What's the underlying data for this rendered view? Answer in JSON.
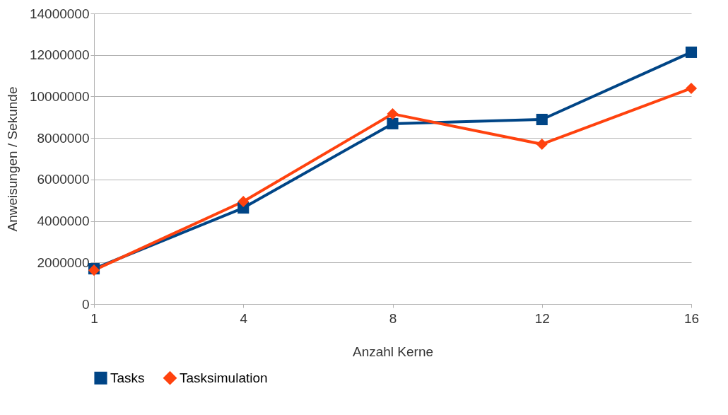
{
  "chart_data": {
    "type": "line",
    "xlabel": "Anzahl Kerne",
    "ylabel": "Anweisungen / Sekunde",
    "categories": [
      "1",
      "4",
      "8",
      "12",
      "16"
    ],
    "series": [
      {
        "name": "Tasks",
        "color": "#004586",
        "marker": "square",
        "values": [
          1700000,
          4630000,
          8690000,
          8890000,
          12130000
        ]
      },
      {
        "name": "Tasksimulation",
        "color": "#ff420e",
        "marker": "diamond",
        "values": [
          1630000,
          4940000,
          9160000,
          7700000,
          10390000
        ]
      }
    ],
    "ylim": [
      0,
      14000000
    ],
    "yticks": [
      0,
      2000000,
      4000000,
      6000000,
      8000000,
      10000000,
      12000000,
      14000000
    ],
    "grid": "y",
    "legend": "bottom",
    "line_style": "solid"
  }
}
